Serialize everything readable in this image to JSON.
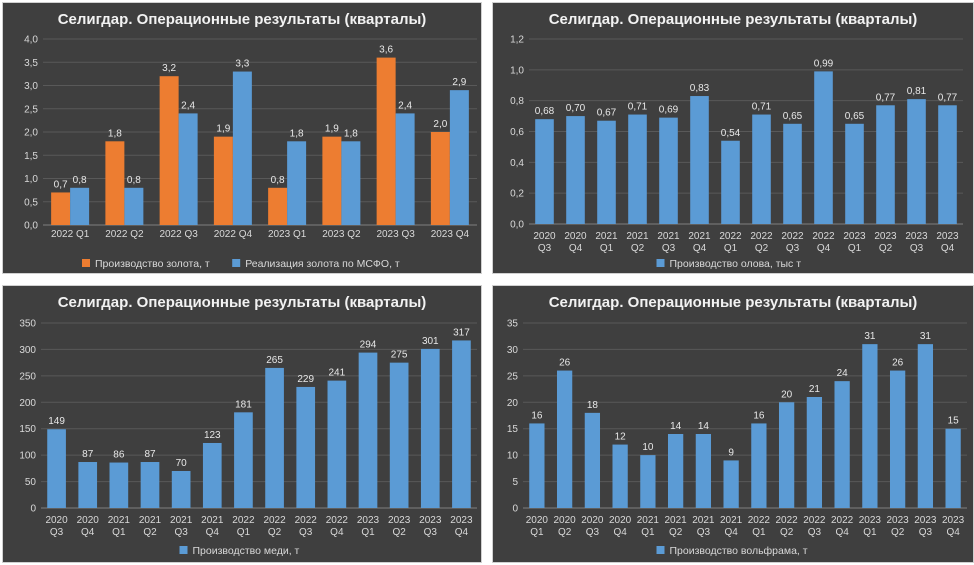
{
  "colors": {
    "background": "#3f3f3f",
    "blue": "#5b9bd5",
    "orange": "#ed7d31",
    "grid": "#595959",
    "text": "#d9d9d9"
  },
  "chart_data": [
    {
      "type": "bar",
      "title": "Селигдар. Операционные результаты (кварталы)",
      "categories": [
        [
          "2022 Q1"
        ],
        [
          "2022 Q2"
        ],
        [
          "2022 Q3"
        ],
        [
          "2022 Q4"
        ],
        [
          "2023 Q1"
        ],
        [
          "2023 Q2"
        ],
        [
          "2023 Q3"
        ],
        [
          "2023 Q4"
        ]
      ],
      "series": [
        {
          "name": "Производство золота, т",
          "color": "#ed7d31",
          "values": [
            0.7,
            1.8,
            3.2,
            1.9,
            0.8,
            1.9,
            3.6,
            2.0
          ],
          "labels": [
            "0,7",
            "1,8",
            "3,2",
            "1,9",
            "0,8",
            "1,9",
            "3,6",
            "2,0"
          ]
        },
        {
          "name": "Реализация золота по МСФО, т",
          "color": "#5b9bd5",
          "values": [
            0.8,
            0.8,
            2.4,
            3.3,
            1.8,
            1.8,
            2.4,
            2.9
          ],
          "labels": [
            "0,8",
            "0,8",
            "2,4",
            "3,3",
            "1,8",
            "1,8",
            "2,4",
            "2,9"
          ]
        }
      ],
      "yticks": [
        0,
        0.5,
        1.0,
        1.5,
        2.0,
        2.5,
        3.0,
        3.5,
        4.0
      ],
      "ytick_labels": [
        "0,0",
        "0,5",
        "1,0",
        "1,5",
        "2,0",
        "2,5",
        "3,0",
        "3,5",
        "4,0"
      ],
      "ylim": [
        0,
        4.0
      ],
      "legend": "bottom"
    },
    {
      "type": "bar",
      "title": "Селигдар. Операционные результаты (кварталы)",
      "categories": [
        [
          "2020",
          "Q3"
        ],
        [
          "2020",
          "Q4"
        ],
        [
          "2021",
          "Q1"
        ],
        [
          "2021",
          "Q2"
        ],
        [
          "2021",
          "Q3"
        ],
        [
          "2021",
          "Q4"
        ],
        [
          "2022",
          "Q1"
        ],
        [
          "2022",
          "Q2"
        ],
        [
          "2022",
          "Q3"
        ],
        [
          "2022",
          "Q4"
        ],
        [
          "2023",
          "Q1"
        ],
        [
          "2023",
          "Q2"
        ],
        [
          "2023",
          "Q3"
        ],
        [
          "2023",
          "Q4"
        ]
      ],
      "series": [
        {
          "name": "Производство олова, тыс т",
          "color": "#5b9bd5",
          "values": [
            0.68,
            0.7,
            0.67,
            0.71,
            0.69,
            0.83,
            0.54,
            0.71,
            0.65,
            0.99,
            0.65,
            0.77,
            0.81,
            0.77
          ],
          "labels": [
            "0,68",
            "0,70",
            "0,67",
            "0,71",
            "0,69",
            "0,83",
            "0,54",
            "0,71",
            "0,65",
            "0,99",
            "0,65",
            "0,77",
            "0,81",
            "0,77"
          ]
        }
      ],
      "yticks": [
        0,
        0.2,
        0.4,
        0.6,
        0.8,
        1.0,
        1.2
      ],
      "ytick_labels": [
        "0,0",
        "0,2",
        "0,4",
        "0,6",
        "0,8",
        "1,0",
        "1,2"
      ],
      "ylim": [
        0,
        1.2
      ],
      "legend": "bottom"
    },
    {
      "type": "bar",
      "title": "Селигдар. Операционные результаты (кварталы)",
      "categories": [
        [
          "2020",
          "Q3"
        ],
        [
          "2020",
          "Q4"
        ],
        [
          "2021",
          "Q1"
        ],
        [
          "2021",
          "Q2"
        ],
        [
          "2021",
          "Q3"
        ],
        [
          "2021",
          "Q4"
        ],
        [
          "2022",
          "Q1"
        ],
        [
          "2022",
          "Q2"
        ],
        [
          "2022",
          "Q3"
        ],
        [
          "2022",
          "Q4"
        ],
        [
          "2023",
          "Q1"
        ],
        [
          "2023",
          "Q2"
        ],
        [
          "2023",
          "Q3"
        ],
        [
          "2023",
          "Q4"
        ]
      ],
      "series": [
        {
          "name": "Производство меди, т",
          "color": "#5b9bd5",
          "values": [
            149,
            87,
            86,
            87,
            70,
            123,
            181,
            265,
            229,
            241,
            294,
            275,
            301,
            317
          ],
          "labels": [
            "149",
            "87",
            "86",
            "87",
            "70",
            "123",
            "181",
            "265",
            "229",
            "241",
            "294",
            "275",
            "301",
            "317"
          ]
        }
      ],
      "yticks": [
        0,
        50,
        100,
        150,
        200,
        250,
        300,
        350
      ],
      "ytick_labels": [
        "0",
        "50",
        "100",
        "150",
        "200",
        "250",
        "300",
        "350"
      ],
      "ylim": [
        0,
        350
      ],
      "legend": "bottom"
    },
    {
      "type": "bar",
      "title": "Селигдар. Операционные результаты (кварталы)",
      "categories": [
        [
          "2020",
          "Q1"
        ],
        [
          "2020",
          "Q2"
        ],
        [
          "2020",
          "Q3"
        ],
        [
          "2020",
          "Q4"
        ],
        [
          "2021",
          "Q1"
        ],
        [
          "2021",
          "Q2"
        ],
        [
          "2021",
          "Q3"
        ],
        [
          "2021",
          "Q4"
        ],
        [
          "2022",
          "Q1"
        ],
        [
          "2022",
          "Q2"
        ],
        [
          "2022",
          "Q3"
        ],
        [
          "2022",
          "Q4"
        ],
        [
          "2023",
          "Q1"
        ],
        [
          "2023",
          "Q2"
        ],
        [
          "2023",
          "Q3"
        ],
        [
          "2023",
          "Q4"
        ]
      ],
      "series": [
        {
          "name": "Производство вольфрама, т",
          "color": "#5b9bd5",
          "values": [
            16,
            26,
            18,
            12,
            10,
            14,
            14,
            9,
            16,
            20,
            21,
            24,
            31,
            26,
            31,
            15
          ],
          "labels": [
            "16",
            "26",
            "18",
            "12",
            "10",
            "14",
            "14",
            "9",
            "16",
            "20",
            "21",
            "24",
            "31",
            "26",
            "31",
            "15"
          ]
        }
      ],
      "yticks": [
        0,
        5,
        10,
        15,
        20,
        25,
        30,
        35
      ],
      "ytick_labels": [
        "0",
        "5",
        "10",
        "15",
        "20",
        "25",
        "30",
        "35"
      ],
      "ylim": [
        0,
        35
      ],
      "legend": "bottom"
    }
  ]
}
